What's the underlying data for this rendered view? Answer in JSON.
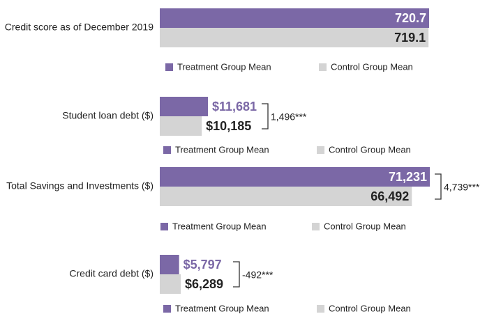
{
  "chart_data": [
    {
      "type": "bar",
      "categories": [
        "Credit score as of December 2019"
      ],
      "series": [
        {
          "name": "Treatment Group Mean",
          "color": "#7b68a6",
          "values": [
            720.7
          ]
        },
        {
          "name": "Control Group Mean",
          "color": "#d4d4d4",
          "values": [
            719.1
          ]
        }
      ]
    },
    {
      "type": "bar",
      "categories": [
        "Student loan debt ($)"
      ],
      "series": [
        {
          "name": "Treatment Group Mean",
          "color": "#7b68a6",
          "values": [
            11681
          ],
          "value_labels": [
            "$11,681"
          ]
        },
        {
          "name": "Control Group Mean",
          "color": "#d4d4d4",
          "values": [
            10185
          ],
          "value_labels": [
            "$10,185"
          ]
        }
      ],
      "annotation": "1,496***"
    },
    {
      "type": "bar",
      "categories": [
        "Total Savings and Investments ($)"
      ],
      "series": [
        {
          "name": "Treatment Group Mean",
          "color": "#7b68a6",
          "values": [
            71231
          ],
          "value_labels": [
            "71,231"
          ]
        },
        {
          "name": "Control Group Mean",
          "color": "#d4d4d4",
          "values": [
            66492
          ],
          "value_labels": [
            "66,492"
          ]
        }
      ],
      "annotation": "4,739***"
    },
    {
      "type": "bar",
      "categories": [
        "Credit card debt ($)"
      ],
      "series": [
        {
          "name": "Treatment Group Mean",
          "color": "#7b68a6",
          "values": [
            5797
          ],
          "value_labels": [
            "$5,797"
          ]
        },
        {
          "name": "Control Group Mean",
          "color": "#d4d4d4",
          "values": [
            6289
          ],
          "value_labels": [
            "$6,289"
          ]
        }
      ],
      "annotation": "-492***"
    }
  ]
}
